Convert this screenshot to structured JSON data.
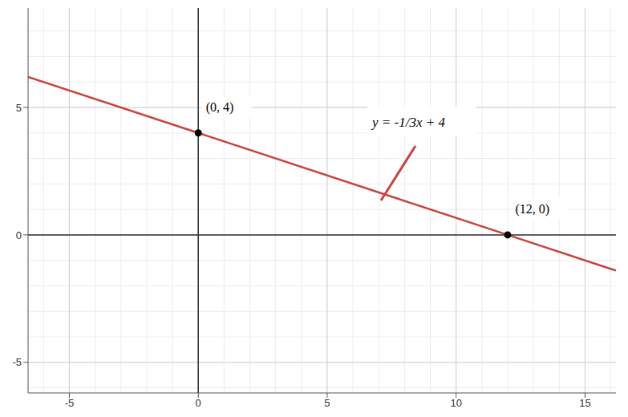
{
  "chart_data": {
    "type": "line",
    "x": [
      -6.6,
      0,
      12,
      16.2
    ],
    "values": [
      6.2,
      4,
      0,
      -1.4
    ],
    "color": "#c74440",
    "xlim": [
      -6.6,
      16.2
    ],
    "ylim": [
      -6.2,
      8.9
    ],
    "xticks": [
      -5,
      0,
      5,
      10,
      15
    ],
    "yticks": [
      -5,
      0,
      5
    ],
    "grid": true,
    "annotation": "y = -1/3x + 4",
    "points": [
      {
        "x": 0,
        "y": 4,
        "label": "(0, 4)"
      },
      {
        "x": 12,
        "y": 0,
        "label": "(12, 0)"
      }
    ]
  }
}
